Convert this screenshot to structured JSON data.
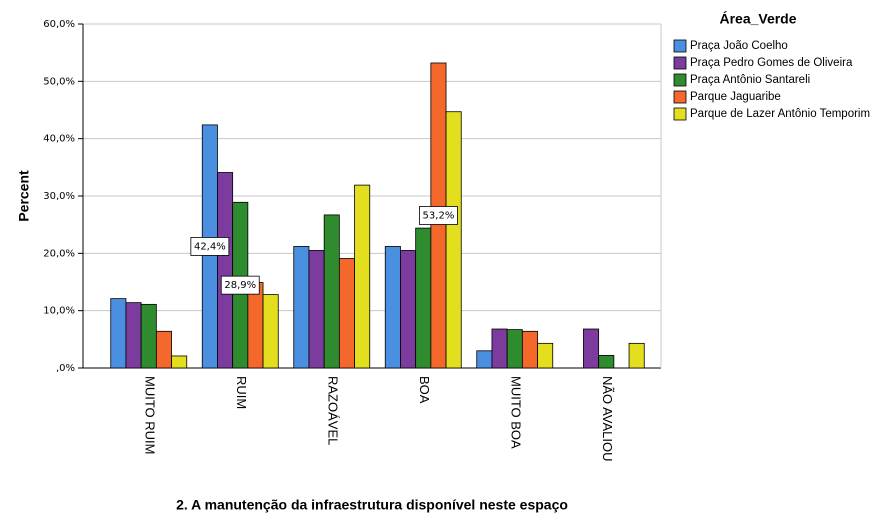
{
  "chart_data": {
    "type": "bar",
    "x_label": "2. A manutenção da infraestrutura disponível neste espaço",
    "y_label": "Percent",
    "legend_title": "Área_Verde",
    "legend": "right",
    "grid": true,
    "categories": [
      "MUITO RUIM",
      "RUIM",
      "RAZOÁVEL",
      "BOA",
      "MUITO BOA",
      "NÃO AVALIOU"
    ],
    "series": [
      {
        "name": "Praça João Coelho",
        "color": "#4a8fe0",
        "values": [
          12.1,
          42.4,
          21.2,
          21.2,
          3.0,
          0
        ],
        "value_labels": [
          null,
          "42,4%",
          null,
          null,
          null,
          null
        ]
      },
      {
        "name": "Praça Pedro Gomes de Oliveira",
        "color": "#7b3c9e",
        "values": [
          11.4,
          34.1,
          20.5,
          20.5,
          6.8,
          6.8
        ]
      },
      {
        "name": "Praça Antônio Santareli",
        "color": "#2e8b2e",
        "values": [
          11.1,
          28.9,
          26.7,
          24.4,
          6.7,
          2.2
        ],
        "value_labels": [
          null,
          "28,9%",
          null,
          null,
          null,
          null
        ]
      },
      {
        "name": "Parque Jaguaribe",
        "color": "#f5682b",
        "values": [
          6.4,
          14.9,
          19.1,
          53.2,
          6.4,
          0
        ],
        "value_labels": [
          null,
          null,
          null,
          "53,2%",
          null,
          null
        ]
      },
      {
        "name": "Parque de Lazer Antônio Temporim",
        "color": "#e3df1e",
        "values": [
          2.1,
          12.8,
          31.9,
          44.7,
          4.3,
          4.3
        ]
      }
    ],
    "ylim": [
      0,
      60
    ],
    "yticks": [
      {
        "value": 0,
        "label": ",0%"
      },
      {
        "value": 10,
        "label": "10,0%"
      },
      {
        "value": 20,
        "label": "20,0%"
      },
      {
        "value": 30,
        "label": "30,0%"
      },
      {
        "value": 40,
        "label": "40,0%"
      },
      {
        "value": 50,
        "label": "50,0%"
      },
      {
        "value": 60,
        "label": "60,0%"
      }
    ]
  }
}
